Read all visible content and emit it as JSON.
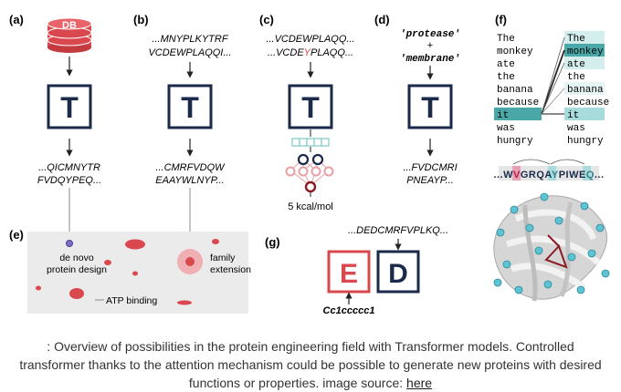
{
  "panels": {
    "a": {
      "label": "(a)",
      "db_text": "DB",
      "t_letter": "T",
      "seq_line1": "...QICMNYTR",
      "seq_line2": "FVDQYPEQ..."
    },
    "b": {
      "label": "(b)",
      "seq_in1": "...MNYPLKYTRF",
      "seq_in2": "VCDEWPLAQQI...",
      "t_letter": "T",
      "seq_out1": "...CMRFVDQW",
      "seq_out2": "EAAYWLNYP..."
    },
    "c": {
      "label": "(c)",
      "seq1": "...VCDEWPLAQQ...",
      "seq2_pre": "...VCDE",
      "seq2_mut": "Y",
      "seq2_post": "PLAQQ...",
      "t_letter": "T",
      "energy": "5 kcal/mol"
    },
    "d": {
      "label": "(d)",
      "word1": "'protease'",
      "plus": "+",
      "word2": "'membrane'",
      "t_letter": "T",
      "seq_out1": "...FVDCMRI",
      "seq_out2": "PNEAYP..."
    },
    "e": {
      "label": "(e)",
      "de_novo1": "de novo",
      "de_novo2": "protein design",
      "family1": "family",
      "family2": "extension",
      "atp": "ATP binding"
    },
    "f": {
      "label": "(f)",
      "words": [
        "The",
        "monkey",
        "ate",
        "the",
        "banana",
        "because",
        "it",
        "was",
        "hungry"
      ],
      "seq_parts": [
        "...W",
        "V",
        "GRQA",
        "Y",
        "PIWE",
        "Q",
        "..."
      ]
    },
    "g": {
      "label": "(g)",
      "seq": "...DEDCMRFVPLKQ...",
      "e_letter": "E",
      "d_letter": "D",
      "smiles": "Cc1ccccc1"
    }
  },
  "caption": {
    "text": ": Overview of possibilities in the protein engineering field with Transformer models. Controlled transformer thanks to the attention mechanism could be possible to generate new proteins with desired functions or properties. image source: ",
    "link": "here"
  },
  "colors": {
    "navy": "#1b2a4a",
    "red": "#d9484f",
    "teal": "#7ec8c8",
    "teal_dark": "#4aa8a8",
    "gray_bg": "#ebebeb"
  }
}
